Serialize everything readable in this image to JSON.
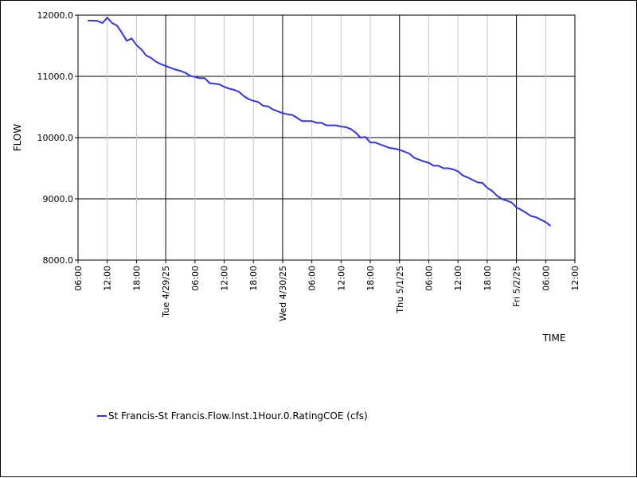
{
  "chart_data": {
    "type": "line",
    "xlabel": "TIME",
    "ylabel": "FLOW",
    "ylim": [
      8000,
      12000
    ],
    "y_ticks": [
      "8000.0",
      "9000.0",
      "10000.0",
      "11000.0",
      "12000.0"
    ],
    "xlim": [
      "2025-04-28 06:00",
      "2025-05-02 12:00"
    ],
    "x_ticks": [
      {
        "label": "06:00",
        "hours": 0
      },
      {
        "label": "12:00",
        "hours": 6
      },
      {
        "label": "18:00",
        "hours": 12
      },
      {
        "label": "Tue 4/29/25",
        "hours": 18,
        "major": true
      },
      {
        "label": "06:00",
        "hours": 24
      },
      {
        "label": "12:00",
        "hours": 30
      },
      {
        "label": "18:00",
        "hours": 36
      },
      {
        "label": "Wed 4/30/25",
        "hours": 42,
        "major": true
      },
      {
        "label": "06:00",
        "hours": 48
      },
      {
        "label": "12:00",
        "hours": 54
      },
      {
        "label": "18:00",
        "hours": 60
      },
      {
        "label": "Thu 5/1/25",
        "hours": 66,
        "major": true
      },
      {
        "label": "06:00",
        "hours": 72
      },
      {
        "label": "12:00",
        "hours": 78
      },
      {
        "label": "18:00",
        "hours": 84
      },
      {
        "label": "Fri 5/2/25",
        "hours": 90,
        "major": true
      },
      {
        "label": "06:00",
        "hours": 96
      },
      {
        "label": "12:00",
        "hours": 102
      }
    ],
    "grid": true,
    "legend_position": "bottom-left",
    "series": [
      {
        "name": "St Francis-St Francis.Flow.Inst.1Hour.0.RatingCOE (cfs)",
        "color": "#3333ee",
        "x": [
          2,
          3,
          4,
          5,
          6,
          7,
          8,
          9,
          10,
          11,
          12,
          13,
          14,
          15,
          16,
          17,
          18,
          19,
          20,
          21,
          22,
          23,
          24,
          25,
          26,
          27,
          28,
          29,
          30,
          31,
          32,
          33,
          34,
          35,
          36,
          37,
          38,
          39,
          40,
          41,
          42,
          43,
          44,
          45,
          46,
          47,
          48,
          49,
          50,
          51,
          52,
          53,
          54,
          55,
          56,
          57,
          58,
          59,
          60,
          61,
          62,
          63,
          64,
          65,
          66,
          67,
          68,
          69,
          70,
          71,
          72,
          73,
          74,
          75,
          76,
          77,
          78,
          79,
          80,
          81,
          82,
          83,
          84,
          85,
          86,
          87,
          88,
          89,
          90,
          91,
          92,
          93,
          94,
          95,
          96,
          97
        ],
        "y": [
          11910,
          11910,
          11905,
          11870,
          11960,
          11870,
          11830,
          11710,
          11580,
          11620,
          11510,
          11440,
          11340,
          11300,
          11240,
          11200,
          11170,
          11140,
          11110,
          11090,
          11060,
          11010,
          10990,
          10970,
          10970,
          10890,
          10880,
          10870,
          10830,
          10800,
          10780,
          10750,
          10680,
          10630,
          10600,
          10580,
          10520,
          10510,
          10460,
          10430,
          10400,
          10380,
          10370,
          10320,
          10270,
          10270,
          10270,
          10240,
          10240,
          10200,
          10200,
          10200,
          10180,
          10170,
          10140,
          10080,
          10000,
          10010,
          9920,
          9920,
          9890,
          9860,
          9830,
          9820,
          9800,
          9770,
          9740,
          9670,
          9640,
          9610,
          9590,
          9540,
          9540,
          9500,
          9500,
          9480,
          9450,
          9380,
          9350,
          9310,
          9270,
          9260,
          9180,
          9130,
          9050,
          9000,
          8970,
          8940,
          8860,
          8820,
          8770,
          8720,
          8700,
          8660,
          8620,
          8560
        ]
      }
    ]
  }
}
